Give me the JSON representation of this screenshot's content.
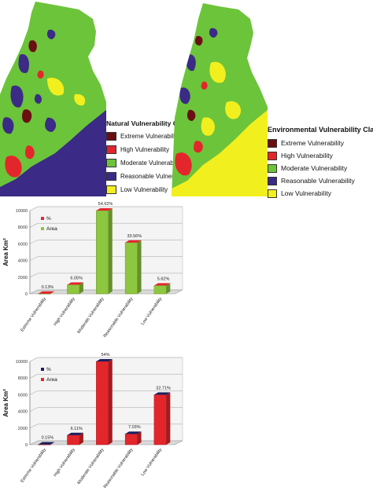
{
  "colors": {
    "extreme": "#6b0f12",
    "high": "#e3262b",
    "moderate": "#6cc43a",
    "reasonable": "#3b2a86",
    "low": "#f2ef1e",
    "water": "#ffffff"
  },
  "maps": [
    {
      "legend_title": "Natural Vulnerability Classes",
      "legend_items": [
        "Extreme Vulnerability",
        "High Vulnerability",
        "Moderate Vulnerability",
        "Reasonable Vulnerabil",
        "Low Vulnerability"
      ]
    },
    {
      "legend_title": "Environmental Vulnerability Classes",
      "legend_items": [
        "Extreme Vulnerability",
        "High Vulnerability",
        "Moderate Vulnerability",
        "Reasonable Vulnerability",
        "Low Vulnerability"
      ]
    }
  ],
  "chart_data": [
    {
      "type": "bar",
      "ylabel": "Area Km²",
      "ylim": [
        0,
        10000
      ],
      "yticks": [
        0,
        2000,
        4000,
        6000,
        8000,
        10000
      ],
      "categories": [
        "Extreme Vulnerability",
        "High Vulnerability",
        "Moderate Vulnerability",
        "Reasonable Vulnerability",
        "Low Vulnerability"
      ],
      "values": [
        20,
        1100,
        10000,
        6150,
        1000
      ],
      "data_labels": [
        "0.13%",
        "6.05%",
        "54.62%",
        "33.56%",
        "5.62%"
      ],
      "legend": [
        {
          "label": "%",
          "color": "#e3262b"
        },
        {
          "label": "Area",
          "color": "#8dc63f"
        }
      ],
      "bar_color": "#8dc63f",
      "cap_color": "#e3262b",
      "legend_position": "top-left",
      "grid": true
    },
    {
      "type": "bar",
      "ylabel": "Area Km²",
      "ylim": [
        0,
        10000
      ],
      "yticks": [
        0,
        2000,
        4000,
        6000,
        8000,
        10000
      ],
      "categories": [
        "Extreme Vulnerability",
        "High Vulnerability",
        "Moderate Vulnerability",
        "Reasonable Vulnerability",
        "Low Vulnerability"
      ],
      "values": [
        30,
        1150,
        10000,
        1300,
        6000
      ],
      "data_labels": [
        "0.15%",
        "6.11%",
        "54%",
        "7.03%",
        "32.71%"
      ],
      "legend": [
        {
          "label": "%",
          "color": "#1c1f5e"
        },
        {
          "label": "Area",
          "color": "#e3262b"
        }
      ],
      "bar_color": "#e3262b",
      "cap_color": "#1c1f5e",
      "legend_position": "top-left",
      "grid": true
    }
  ]
}
